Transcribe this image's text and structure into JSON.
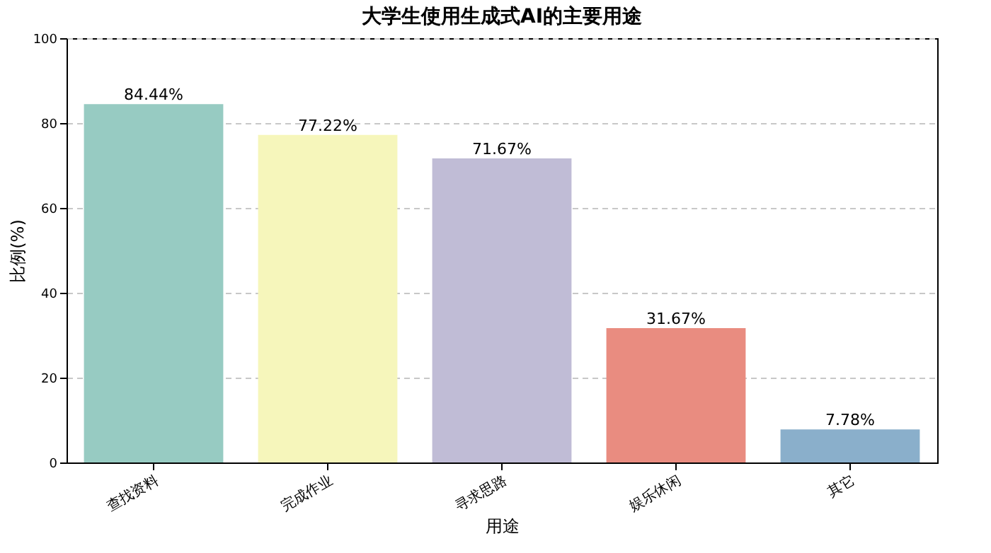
{
  "chart_data": {
    "type": "bar",
    "title": "大学生使用生成式AI的主要用途",
    "xlabel": "用途",
    "ylabel": "比例(%)",
    "categories": [
      "查找资料",
      "完成作业",
      "寻求思路",
      "娱乐休闲",
      "其它"
    ],
    "values": [
      84.44,
      77.22,
      71.67,
      31.67,
      7.78
    ],
    "colors": [
      "#97cbc2",
      "#f6f6bb",
      "#c0bcd6",
      "#e98c80",
      "#8aafcb"
    ],
    "value_labels": [
      "84.44%",
      "77.22%",
      "71.67%",
      "31.67%",
      "7.78%"
    ],
    "ylim": [
      0,
      100
    ],
    "yticks": [
      0,
      20,
      40,
      60,
      80,
      100
    ],
    "grid": "y"
  }
}
